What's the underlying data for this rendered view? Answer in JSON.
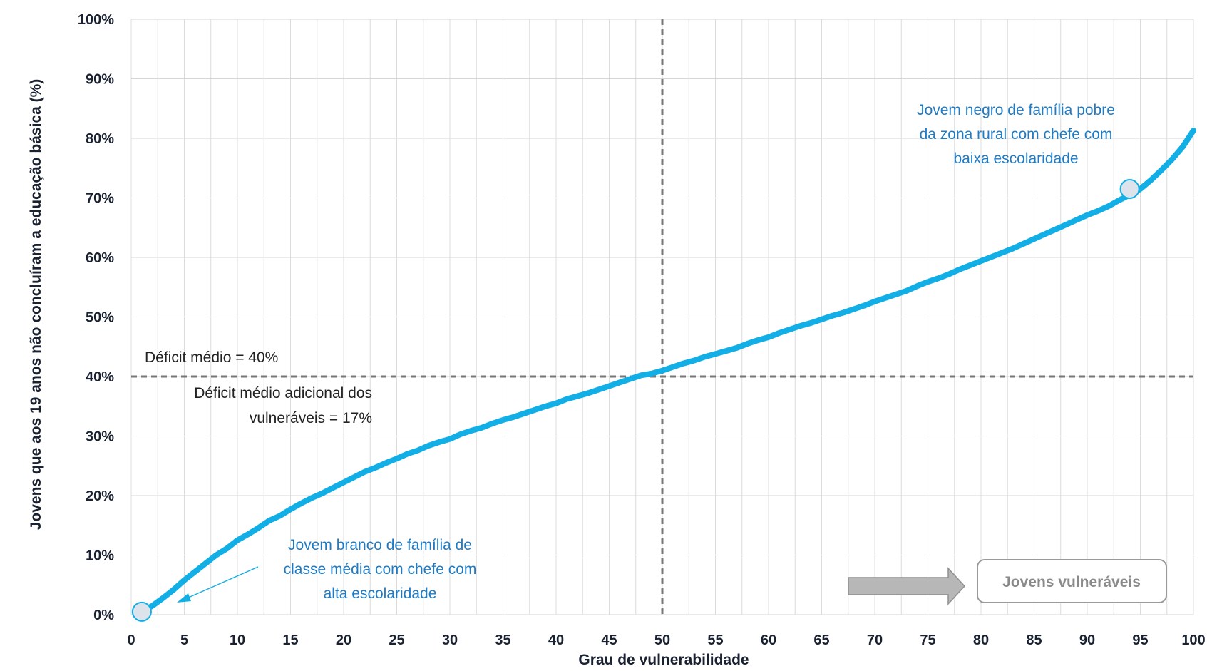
{
  "chart_data": {
    "type": "line",
    "title": "",
    "xlabel": "Grau de vulnerabilidade",
    "ylabel": "Jovens que aos 19 anos não concluíram a educação básica (%)",
    "xlim": [
      0,
      100
    ],
    "ylim": [
      0,
      100
    ],
    "x_ticks": [
      0,
      5,
      10,
      15,
      20,
      25,
      30,
      35,
      40,
      45,
      50,
      55,
      60,
      65,
      70,
      75,
      80,
      85,
      90,
      95,
      100
    ],
    "x_tick_labels": [
      "0",
      "5",
      "10",
      "15",
      "20",
      "25",
      "30",
      "35",
      "40",
      "45",
      "50",
      "55",
      "60",
      "65",
      "70",
      "75",
      "80",
      "85",
      "90",
      "95",
      "100"
    ],
    "y_ticks": [
      0,
      10,
      20,
      30,
      40,
      50,
      60,
      70,
      80,
      90,
      100
    ],
    "y_tick_labels": [
      "0%",
      "10%",
      "20%",
      "30%",
      "40%",
      "50%",
      "60%",
      "70%",
      "80%",
      "90%",
      "100%"
    ],
    "grid": true,
    "line_color": "#12aee6",
    "series": [
      {
        "x": [
          1,
          2,
          3,
          4,
          5,
          6,
          7,
          8,
          9,
          10,
          11,
          12,
          13,
          14,
          15,
          16,
          17,
          18,
          19,
          20,
          21,
          22,
          23,
          24,
          25,
          26,
          27,
          28,
          29,
          30,
          31,
          32,
          33,
          34,
          35,
          36,
          37,
          38,
          39,
          40,
          41,
          42,
          43,
          44,
          45,
          46,
          47,
          48,
          49,
          50,
          51,
          52,
          53,
          54,
          55,
          56,
          57,
          58,
          59,
          60,
          61,
          62,
          63,
          64,
          65,
          66,
          67,
          68,
          69,
          70,
          71,
          72,
          73,
          74,
          75,
          76,
          77,
          78,
          79,
          80,
          81,
          82,
          83,
          84,
          85,
          86,
          87,
          88,
          89,
          90,
          91,
          92,
          93,
          94,
          95,
          96,
          97,
          98,
          99,
          100
        ],
        "values": [
          0.5,
          1.5,
          2.8,
          4.2,
          5.8,
          7.2,
          8.6,
          10.0,
          11.1,
          12.5,
          13.5,
          14.6,
          15.8,
          16.6,
          17.7,
          18.7,
          19.6,
          20.4,
          21.3,
          22.2,
          23.1,
          24.0,
          24.7,
          25.5,
          26.2,
          27.0,
          27.6,
          28.4,
          29.0,
          29.5,
          30.3,
          30.9,
          31.4,
          32.1,
          32.7,
          33.2,
          33.8,
          34.4,
          35.0,
          35.5,
          36.2,
          36.7,
          37.2,
          37.8,
          38.4,
          39.0,
          39.6,
          40.2,
          40.5,
          41.0,
          41.6,
          42.2,
          42.7,
          43.3,
          43.8,
          44.3,
          44.8,
          45.5,
          46.1,
          46.6,
          47.3,
          47.9,
          48.5,
          49.0,
          49.6,
          50.2,
          50.7,
          51.3,
          51.9,
          52.6,
          53.2,
          53.8,
          54.4,
          55.2,
          55.9,
          56.5,
          57.2,
          58.0,
          58.7,
          59.4,
          60.1,
          60.8,
          61.5,
          62.3,
          63.1,
          63.9,
          64.7,
          65.5,
          66.3,
          67.1,
          67.8,
          68.6,
          69.6,
          70.5,
          71.5,
          73.0,
          74.7,
          76.5,
          78.6,
          81.3
        ]
      }
    ],
    "reference_lines": [
      {
        "orientation": "vertical",
        "value": 50
      },
      {
        "orientation": "horizontal",
        "value": 40
      }
    ],
    "markers": [
      {
        "x": 1,
        "y": 0.5
      },
      {
        "x": 94,
        "y": 71.5
      }
    ],
    "annotations": {
      "deficit_medio": "Déficit médio = 40%",
      "deficit_adicional_line1": "Déficit médio adicional dos",
      "deficit_adicional_line2": "vulneráveis = 17%",
      "jovem_branco_line1": "Jovem branco de família de",
      "jovem_branco_line2": "classe média com chefe com",
      "jovem_branco_line3": "alta escolaridade",
      "jovem_negro_line1": "Jovem negro de família pobre",
      "jovem_negro_line2": "da zona rural com chefe com",
      "jovem_negro_line3": "baixa escolaridade",
      "jovens_vulneraveis": "Jovens vulneráveis"
    }
  }
}
